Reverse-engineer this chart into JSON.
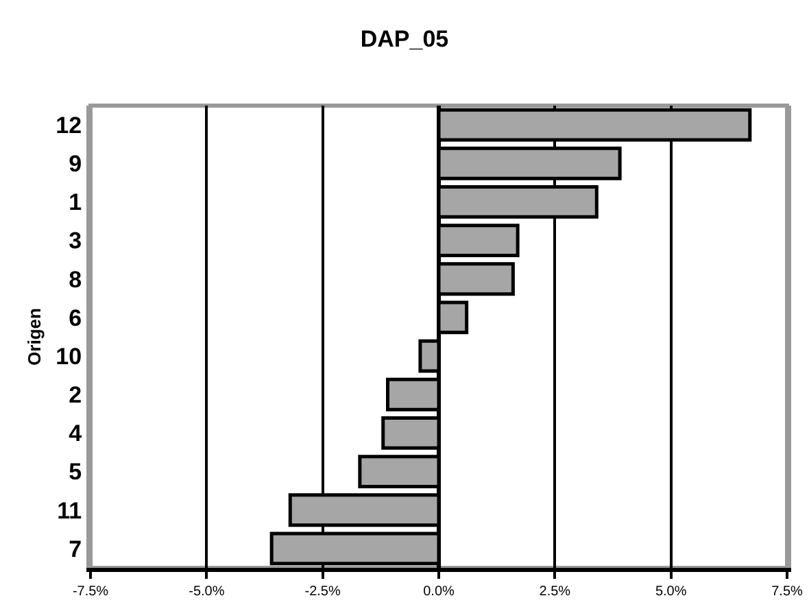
{
  "chart_data": {
    "type": "bar",
    "title": "DAP_05",
    "ylabel": "Origen",
    "orientation": "horizontal",
    "categories": [
      "12",
      "9",
      "1",
      "3",
      "8",
      "6",
      "10",
      "2",
      "4",
      "5",
      "11",
      "7"
    ],
    "values": [
      6.7,
      3.9,
      3.4,
      1.7,
      1.6,
      0.6,
      -0.4,
      -1.1,
      -1.2,
      -1.7,
      -3.2,
      -3.6
    ],
    "color": "#a6a6a6",
    "xlim": [
      -7.5,
      7.5
    ],
    "xticks": [
      {
        "value": -7.5,
        "label": "-7.5%"
      },
      {
        "value": -5,
        "label": "-5.0%"
      },
      {
        "value": -2.5,
        "label": "-2.5%"
      },
      {
        "value": 0,
        "label": "0.0%"
      },
      {
        "value": 2.5,
        "label": "2.5%"
      },
      {
        "value": 5,
        "label": "5.0%"
      },
      {
        "value": 7.5,
        "label": "7.5%"
      }
    ],
    "grid": "x"
  }
}
